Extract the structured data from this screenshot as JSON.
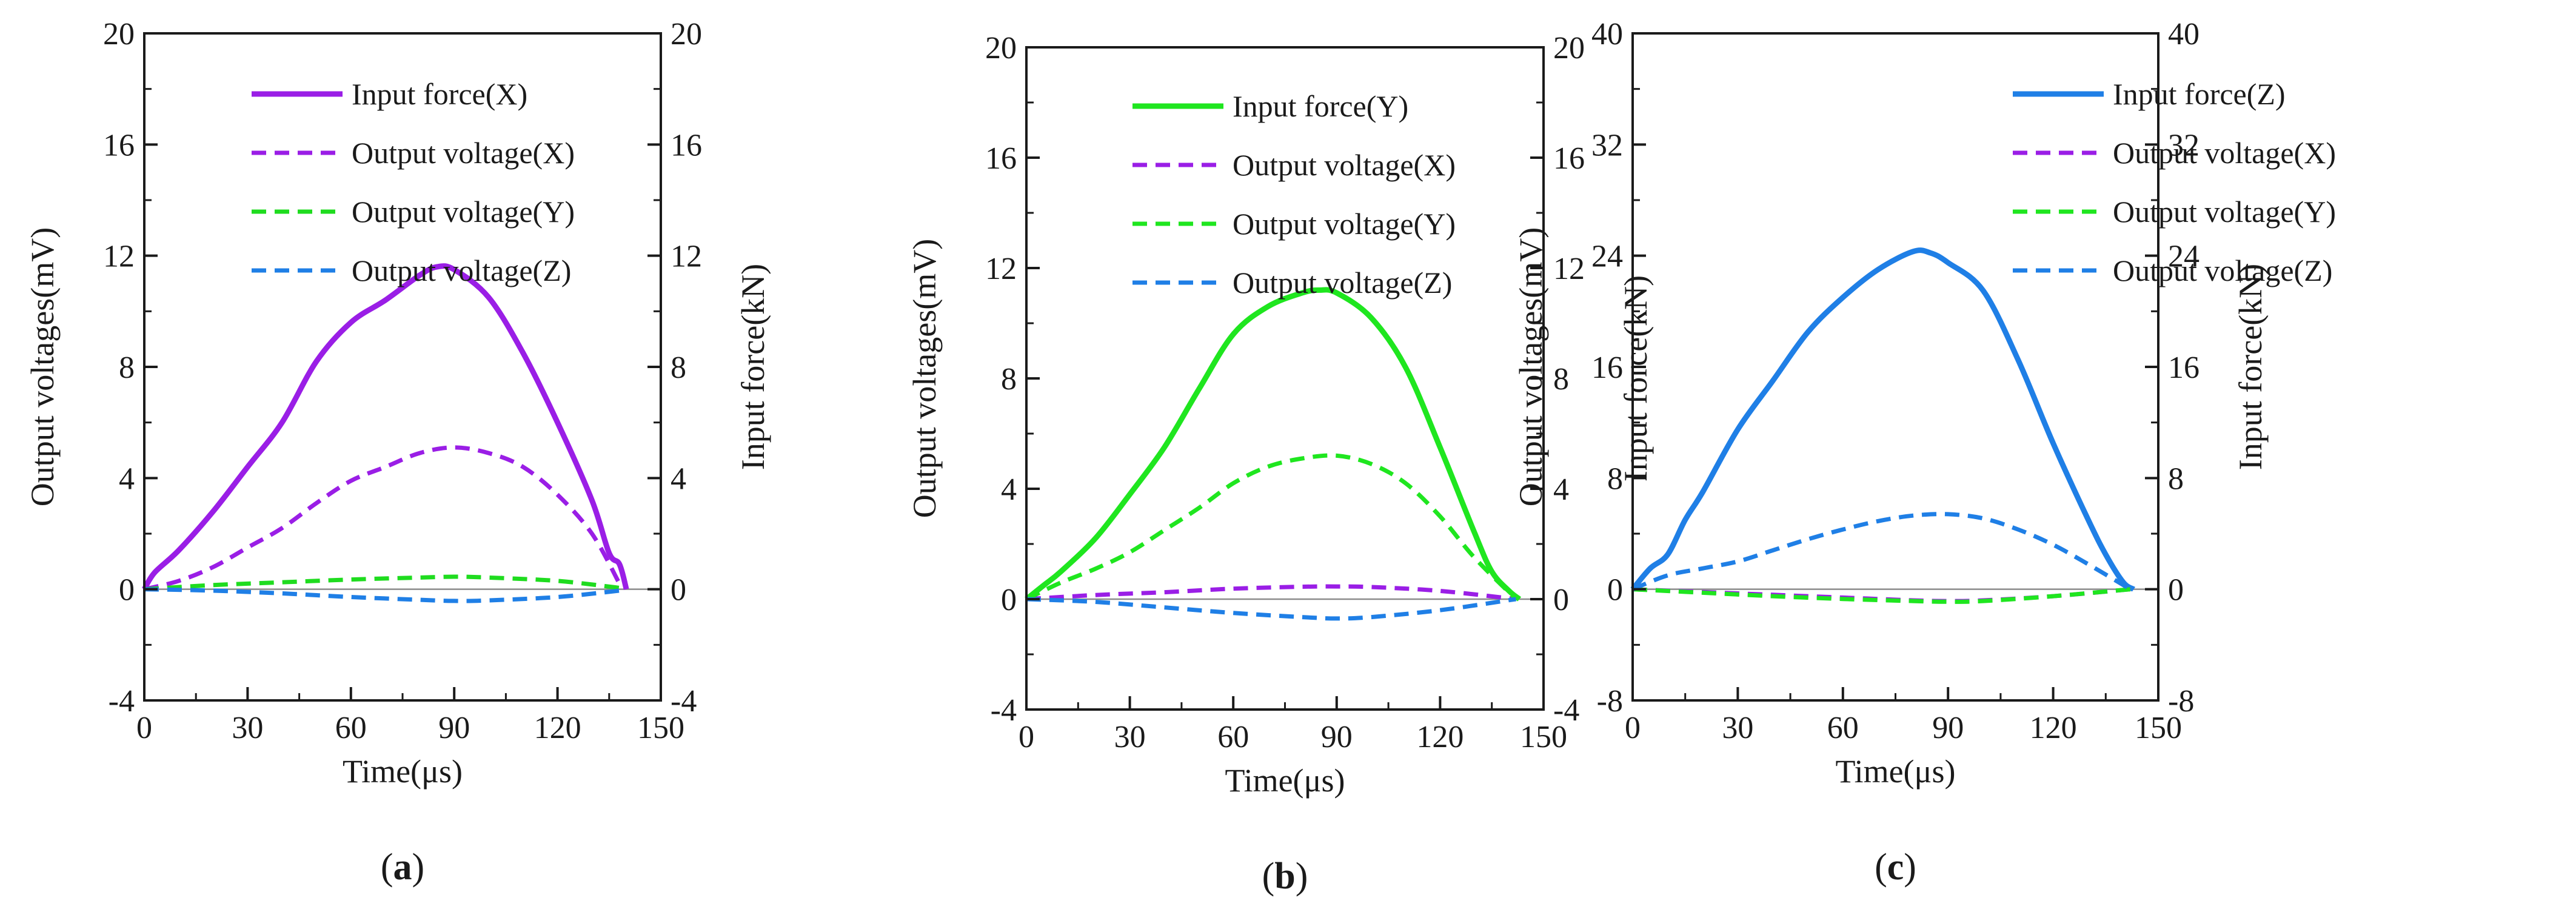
{
  "chart_data": [
    {
      "type": "line",
      "panel_label": "(a)",
      "panel_letter": "a",
      "xlabel": "Time(μs)",
      "ylabel": "Output voltages(mV)",
      "y2label": "Input force(kN)",
      "xlim": [
        0,
        150
      ],
      "ylim": [
        -4,
        20
      ],
      "y2lim": [
        -4,
        20
      ],
      "xticks": [
        "0",
        "30",
        "60",
        "90",
        "120",
        "150"
      ],
      "yticks": [
        "-4",
        "0",
        "4",
        "8",
        "12",
        "16",
        "20"
      ],
      "y2ticks": [
        "-4",
        "0",
        "4",
        "8",
        "12",
        "16",
        "20"
      ],
      "grid": false,
      "legend_position": "top",
      "series": [
        {
          "name": "Input force(X)",
          "color": "#9a1ee6",
          "dash": "solid",
          "x": [
            0,
            3,
            10,
            20,
            30,
            40,
            50,
            60,
            70,
            80,
            85,
            90,
            100,
            110,
            120,
            130,
            135,
            138,
            140
          ],
          "y": [
            0,
            0.6,
            1.4,
            2.8,
            4.4,
            6.0,
            8.2,
            9.6,
            10.4,
            11.3,
            11.6,
            11.5,
            10.5,
            8.5,
            6.0,
            3.2,
            1.3,
            0.9,
            0
          ]
        },
        {
          "name": "Output voltage(X)",
          "color": "#9a1ee6",
          "dash": "dashed",
          "x": [
            0,
            10,
            20,
            30,
            40,
            50,
            60,
            70,
            80,
            90,
            100,
            110,
            120,
            130,
            138
          ],
          "y": [
            0,
            0.3,
            0.8,
            1.5,
            2.2,
            3.1,
            3.9,
            4.4,
            4.9,
            5.1,
            4.9,
            4.4,
            3.4,
            2.0,
            0.2
          ]
        },
        {
          "name": "Output voltage(Y)",
          "color": "#1fdc1f",
          "dash": "dashed",
          "x": [
            0,
            20,
            40,
            60,
            80,
            90,
            100,
            120,
            138
          ],
          "y": [
            0,
            0.15,
            0.25,
            0.35,
            0.42,
            0.45,
            0.42,
            0.3,
            0.05
          ]
        },
        {
          "name": "Output voltage(Z)",
          "color": "#1f7fe6",
          "dash": "dashed",
          "x": [
            0,
            20,
            40,
            60,
            80,
            90,
            100,
            120,
            138
          ],
          "y": [
            0,
            -0.05,
            -0.15,
            -0.28,
            -0.38,
            -0.42,
            -0.4,
            -0.28,
            -0.05
          ]
        }
      ]
    },
    {
      "type": "line",
      "panel_label": "(b)",
      "panel_letter": "b",
      "xlabel": "Time(μs)",
      "ylabel": "Output voltages(mV)",
      "y2label": "Input force(kN)",
      "xlim": [
        0,
        150
      ],
      "ylim": [
        -4,
        20
      ],
      "y2lim": [
        -4,
        20
      ],
      "xticks": [
        "0",
        "30",
        "60",
        "90",
        "120",
        "150"
      ],
      "yticks": [
        "-4",
        "0",
        "4",
        "8",
        "12",
        "16",
        "20"
      ],
      "y2ticks": [
        "-4",
        "0",
        "4",
        "8",
        "12",
        "16",
        "20"
      ],
      "grid": false,
      "legend_position": "top",
      "series": [
        {
          "name": "Input force(Y)",
          "color": "#1fe61f",
          "dash": "solid",
          "x": [
            0,
            5,
            10,
            20,
            30,
            40,
            50,
            60,
            70,
            80,
            85,
            90,
            100,
            110,
            120,
            130,
            135,
            140,
            143
          ],
          "y": [
            0,
            0.5,
            1.0,
            2.2,
            3.8,
            5.5,
            7.6,
            9.6,
            10.6,
            11.1,
            11.2,
            11.1,
            10.2,
            8.4,
            5.5,
            2.4,
            1.0,
            0.3,
            0
          ]
        },
        {
          "name": "Output voltage(X)",
          "color": "#9a1ee6",
          "dash": "dashed",
          "x": [
            0,
            20,
            40,
            60,
            80,
            90,
            100,
            120,
            142
          ],
          "y": [
            0,
            0.15,
            0.25,
            0.38,
            0.45,
            0.46,
            0.44,
            0.3,
            0
          ]
        },
        {
          "name": "Output voltage(Y)",
          "color": "#1fe61f",
          "dash": "dashed",
          "x": [
            0,
            10,
            20,
            30,
            40,
            50,
            60,
            70,
            80,
            90,
            100,
            110,
            120,
            130,
            142
          ],
          "y": [
            0,
            0.6,
            1.1,
            1.7,
            2.5,
            3.3,
            4.2,
            4.8,
            5.1,
            5.2,
            4.9,
            4.2,
            3.0,
            1.5,
            0
          ]
        },
        {
          "name": "Output voltage(Z)",
          "color": "#1f7fe6",
          "dash": "dashed",
          "x": [
            0,
            20,
            40,
            60,
            80,
            90,
            100,
            120,
            142
          ],
          "y": [
            0,
            -0.1,
            -0.3,
            -0.5,
            -0.65,
            -0.7,
            -0.65,
            -0.4,
            0
          ]
        }
      ]
    },
    {
      "type": "line",
      "panel_label": "(c)",
      "panel_letter": "c",
      "xlabel": "Time(μs)",
      "ylabel": "Output voltages(mV)",
      "y2label": "Input force(kN)",
      "xlim": [
        0,
        150
      ],
      "ylim": [
        -8,
        40
      ],
      "y2lim": [
        -8,
        40
      ],
      "xticks": [
        "0",
        "30",
        "60",
        "90",
        "120",
        "150"
      ],
      "yticks": [
        "-8",
        "0",
        "8",
        "16",
        "24",
        "32",
        "40"
      ],
      "y2ticks": [
        "-8",
        "0",
        "8",
        "16",
        "24",
        "32",
        "40"
      ],
      "grid": false,
      "legend_position": "top",
      "series": [
        {
          "name": "Input force(Z)",
          "color": "#1f7fe6",
          "dash": "solid",
          "x": [
            0,
            5,
            10,
            15,
            20,
            30,
            40,
            50,
            60,
            70,
            80,
            85,
            90,
            100,
            110,
            120,
            130,
            135,
            140,
            143
          ],
          "y": [
            0,
            1.5,
            2.5,
            5.0,
            7.0,
            11.5,
            15.0,
            18.5,
            21.0,
            23.0,
            24.3,
            24.2,
            23.5,
            21.5,
            16.5,
            10.5,
            5.0,
            2.5,
            0.5,
            0
          ]
        },
        {
          "name": "Output voltage(X)",
          "color": "#9a1ee6",
          "dash": "dashed",
          "x": [
            0,
            20,
            40,
            60,
            80,
            90,
            100,
            120,
            142
          ],
          "y": [
            0,
            -0.2,
            -0.4,
            -0.6,
            -0.8,
            -0.85,
            -0.8,
            -0.5,
            0
          ]
        },
        {
          "name": "Output voltage(Y)",
          "color": "#1fe61f",
          "dash": "dashed",
          "x": [
            0,
            20,
            40,
            60,
            80,
            90,
            100,
            120,
            142
          ],
          "y": [
            0,
            -0.25,
            -0.5,
            -0.7,
            -0.85,
            -0.9,
            -0.85,
            -0.5,
            0
          ]
        },
        {
          "name": "Output voltage(Z)",
          "color": "#1f7fe6",
          "dash": "dashed",
          "x": [
            0,
            10,
            20,
            30,
            40,
            50,
            60,
            70,
            80,
            90,
            100,
            110,
            120,
            130,
            142
          ],
          "y": [
            0,
            1.0,
            1.5,
            2.0,
            2.8,
            3.6,
            4.3,
            4.9,
            5.3,
            5.4,
            5.1,
            4.3,
            3.2,
            1.8,
            0
          ]
        }
      ]
    }
  ]
}
